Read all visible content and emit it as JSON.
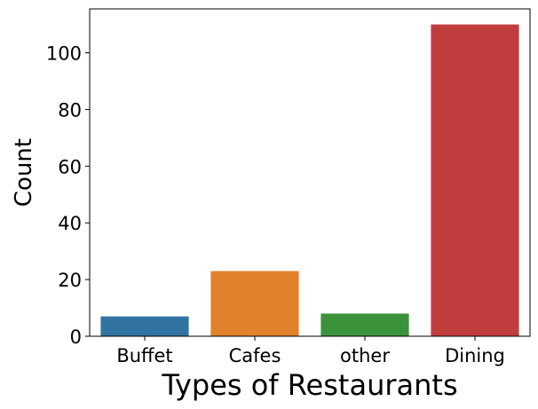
{
  "chart_data": {
    "type": "bar",
    "categories": [
      "Buffet",
      "Cafes",
      "other",
      "Dining"
    ],
    "values": [
      7,
      23,
      8,
      110
    ],
    "colors": [
      "#3274a1",
      "#e1812c",
      "#3a923a",
      "#c03d3e"
    ],
    "xlabel": "Types of Restaurants",
    "ylabel": "Count",
    "ylim": [
      0,
      115.5
    ],
    "yticks": [
      0,
      20,
      40,
      60,
      80,
      100
    ],
    "grid": false,
    "legend": "none"
  }
}
